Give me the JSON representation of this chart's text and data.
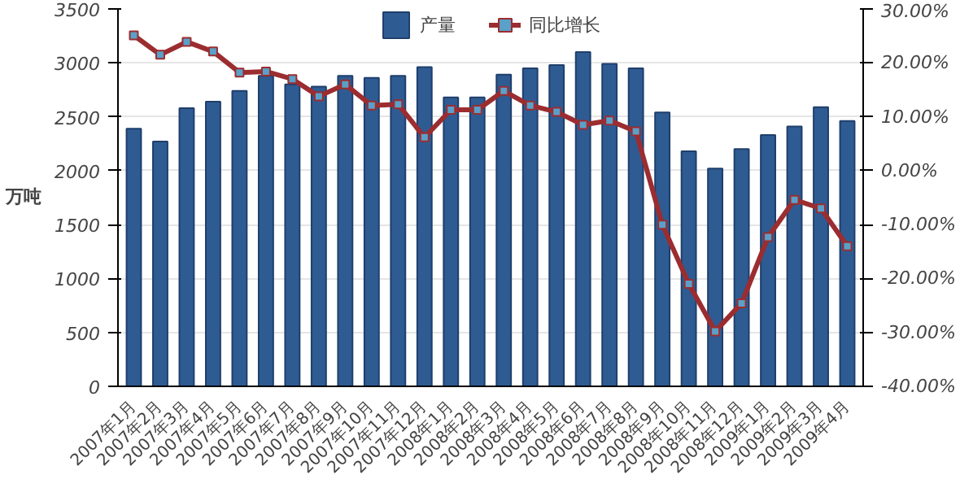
{
  "chart_data": {
    "type": "bar",
    "ylabel": "万吨",
    "categories": [
      "2007年1月",
      "2007年2月",
      "2007年3月",
      "2007年4月",
      "2007年5月",
      "2007年6月",
      "2007年7月",
      "2007年8月",
      "2007年9月",
      "2007年10月",
      "2007年11月",
      "2007年12月",
      "2008年1月",
      "2008年2月",
      "2008年3月",
      "2008年4月",
      "2008年5月",
      "2008年6月",
      "2008年7月",
      "2008年8月",
      "2008年9月",
      "2008年10月",
      "2008年11月",
      "2008年12月",
      "2009年1月",
      "2009年2月",
      "2009年3月",
      "2009年4月"
    ],
    "series": [
      {
        "name": "产量",
        "color": "#2f5b93",
        "values": [
          2390,
          2270,
          2580,
          2640,
          2740,
          2880,
          2800,
          2780,
          2880,
          2860,
          2880,
          2960,
          2680,
          2680,
          2890,
          2950,
          2980,
          3100,
          2990,
          2950,
          2540,
          2180,
          2020,
          2200,
          2330,
          2410,
          2590,
          2460
        ]
      },
      {
        "name": "同比增长",
        "type": "line",
        "axis": "y2",
        "color": "#9b2d30",
        "marker": "square",
        "values": [
          25.1,
          21.5,
          23.9,
          22.1,
          18.2,
          18.4,
          17.0,
          13.8,
          16.0,
          12.1,
          12.3,
          6.2,
          11.3,
          11.3,
          14.8,
          12.1,
          10.9,
          8.5,
          9.3,
          7.3,
          -10.0,
          -21.0,
          -29.8,
          -24.6,
          -12.3,
          -5.4,
          -7.0,
          -14.0
        ]
      }
    ],
    "ylim": [
      0,
      3500
    ],
    "yticks": [
      0,
      500,
      1000,
      1500,
      2000,
      2500,
      3000,
      3500
    ],
    "y2lim": [
      -40,
      30
    ],
    "y2ticks": [
      {
        "value": -40,
        "label": "-40.00%"
      },
      {
        "value": -30,
        "label": "-30.00%"
      },
      {
        "value": -20,
        "label": "-20.00%"
      },
      {
        "value": -10,
        "label": "-10.00%"
      },
      {
        "value": 0,
        "label": "0.00%"
      },
      {
        "value": 10,
        "label": "10.00%"
      },
      {
        "value": 20,
        "label": "20.00%"
      },
      {
        "value": 30,
        "label": "30.00%"
      }
    ],
    "grid": "y",
    "legend": "top"
  }
}
